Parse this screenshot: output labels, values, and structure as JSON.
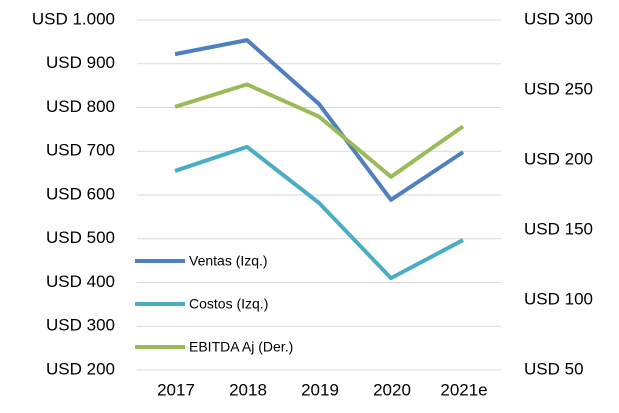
{
  "chart_data": {
    "type": "line",
    "categories": [
      "2017",
      "2018",
      "2019",
      "2020",
      "2021e"
    ],
    "series": [
      {
        "name": "Ventas (Izq.)",
        "color": "#4f7fbf",
        "values": [
          922,
          954,
          808,
          589,
          698
        ]
      },
      {
        "name": "Costos (Izq.)",
        "color": "#4bacc6",
        "values": [
          655,
          710,
          582,
          410,
          497
        ]
      },
      {
        "name": "EBITDA Aj (Der.)",
        "color": "#9bbb59",
        "axis": "y2",
        "values": [
          238,
          254,
          231,
          188,
          224
        ]
      }
    ],
    "ylim": [
      200,
      1000
    ],
    "yticks": [
      {
        "value": 200,
        "label": "USD 200"
      },
      {
        "value": 300,
        "label": "USD 300"
      },
      {
        "value": 400,
        "label": "USD 400"
      },
      {
        "value": 500,
        "label": "USD 500"
      },
      {
        "value": 600,
        "label": "USD 600"
      },
      {
        "value": 700,
        "label": "USD 700"
      },
      {
        "value": 800,
        "label": "USD 800"
      },
      {
        "value": 900,
        "label": "USD 900"
      },
      {
        "value": 1000,
        "label": "USD 1.000"
      }
    ],
    "y2lim": [
      50,
      300
    ],
    "y2ticks": [
      {
        "value": 50,
        "label": "USD 50"
      },
      {
        "value": 100,
        "label": "USD 100"
      },
      {
        "value": 150,
        "label": "USD 150"
      },
      {
        "value": 200,
        "label": "USD 200"
      },
      {
        "value": 250,
        "label": "USD 250"
      },
      {
        "value": 300,
        "label": "USD 300"
      }
    ],
    "grid": true,
    "legend": "lower left"
  }
}
